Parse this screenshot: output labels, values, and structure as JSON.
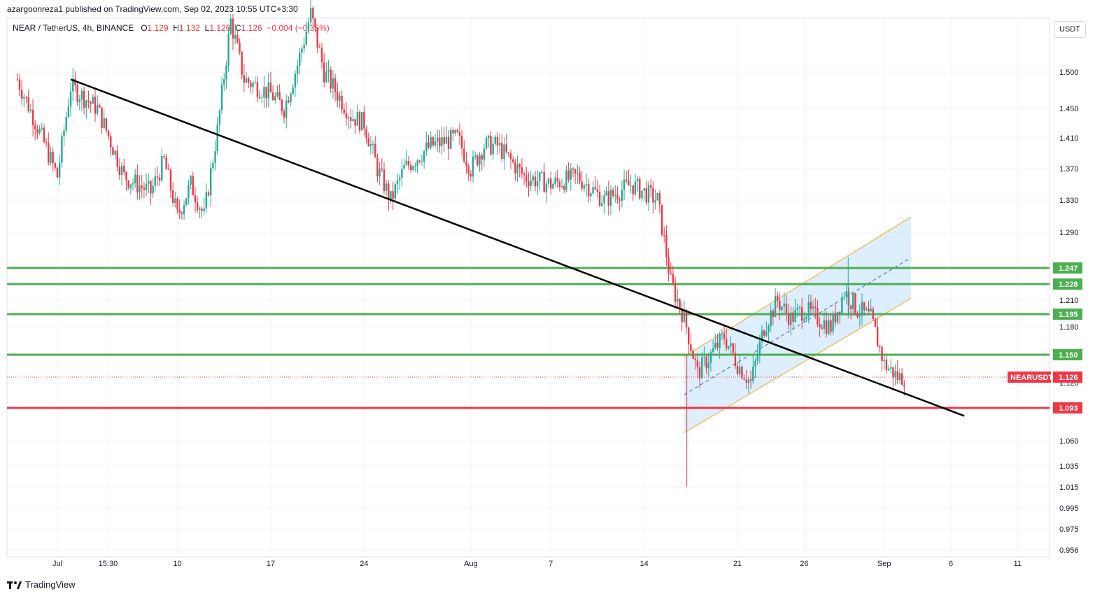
{
  "header": {
    "publisher_line": "azargoonreza1 published on TradingView.com, Sep 02, 2023 10:55 UTC+3:30"
  },
  "legend": {
    "symbol": "NEAR / TetherUS, 4h, BINANCE",
    "open_label": "O",
    "open": "1.129",
    "high_label": "H",
    "high": "1.132",
    "low_label": "L",
    "low": "1.126",
    "close_label": "C",
    "close": "1.126",
    "change": "−0.004 (−0.35%)"
  },
  "currency_button": "USDT",
  "footer": {
    "brand": "TradingView"
  },
  "colors": {
    "up": "#22ab94",
    "down": "#f23645",
    "support_green": "#4caf50",
    "support_red": "#f23645",
    "trendline": "#000000",
    "channel_border": "#f5a623",
    "channel_fill": "#bbdefb",
    "channel_mid": "#2962ff"
  },
  "chart_data": {
    "type": "candlestick",
    "symbol_tag": "NEARUSDT",
    "current_price": "1.126",
    "y_ticks": [
      "1.500",
      "1.450",
      "1.410",
      "1.370",
      "1.330",
      "1.290",
      "1.210",
      "1.180",
      "1.120",
      "1.060",
      "1.035",
      "1.015",
      "0.995",
      "0.975",
      "0.956"
    ],
    "x_ticks": [
      "Jul",
      "15:30",
      "10",
      "17",
      "24",
      "Aug",
      "7",
      "14",
      "21",
      "26",
      "Sep",
      "6",
      "11"
    ],
    "levels": [
      {
        "value": "1.247",
        "color": "green"
      },
      {
        "value": "1.228",
        "color": "green"
      },
      {
        "value": "1.195",
        "color": "green"
      },
      {
        "value": "1.150",
        "color": "green"
      },
      {
        "value": "1.093",
        "color": "red"
      }
    ],
    "trendline": {
      "from": [
        "Jul 2",
        1.49
      ],
      "to": [
        "Sep 7",
        1.085
      ]
    },
    "channel": {
      "lower_from": [
        "Aug 17",
        1.068
      ],
      "lower_to": [
        "Sep 3",
        1.212
      ],
      "upper_from": [
        "Aug 17",
        1.148
      ],
      "upper_to": [
        "Sep 3",
        1.309
      ]
    },
    "anchors": [
      {
        "x": "Jun 28",
        "close": 1.49
      },
      {
        "x": "Jul 1",
        "close": 1.36
      },
      {
        "x": "Jul 2",
        "close": 1.48
      },
      {
        "x": "Jul 4",
        "close": 1.45
      },
      {
        "x": "Jul 6",
        "close": 1.36
      },
      {
        "x": "Jul 8",
        "close": 1.34
      },
      {
        "x": "Jul 9",
        "close": 1.38
      },
      {
        "x": "Jul 10",
        "close": 1.31
      },
      {
        "x": "Jul 11",
        "close": 1.35
      },
      {
        "x": "Jul 12",
        "close": 1.31
      },
      {
        "x": "Jul 13",
        "close": 1.42
      },
      {
        "x": "Jul 14",
        "close": 1.57
      },
      {
        "x": "Jul 15",
        "close": 1.49
      },
      {
        "x": "Jul 17",
        "close": 1.47
      },
      {
        "x": "Jul 18",
        "close": 1.45
      },
      {
        "x": "Jul 19",
        "close": 1.51
      },
      {
        "x": "Jul 20",
        "close": 1.58
      },
      {
        "x": "Jul 21",
        "close": 1.5
      },
      {
        "x": "Jul 23",
        "close": 1.44
      },
      {
        "x": "Jul 24",
        "close": 1.43
      },
      {
        "x": "Jul 25",
        "close": 1.37
      },
      {
        "x": "Jul 26",
        "close": 1.33
      },
      {
        "x": "Jul 27",
        "close": 1.37
      },
      {
        "x": "Jul 29",
        "close": 1.4
      },
      {
        "x": "Jul 31",
        "close": 1.41
      },
      {
        "x": "Aug 1",
        "close": 1.37
      },
      {
        "x": "Aug 2",
        "close": 1.4
      },
      {
        "x": "Aug 3",
        "close": 1.4
      },
      {
        "x": "Aug 5",
        "close": 1.36
      },
      {
        "x": "Aug 7",
        "close": 1.35
      },
      {
        "x": "Aug 9",
        "close": 1.36
      },
      {
        "x": "Aug 11",
        "close": 1.33
      },
      {
        "x": "Aug 13",
        "close": 1.35
      },
      {
        "x": "Aug 15",
        "close": 1.33
      },
      {
        "x": "Aug 16",
        "close": 1.23
      },
      {
        "x": "Aug 17",
        "close": 1.19
      },
      {
        "x": "Aug 18",
        "close": 1.13
      },
      {
        "x": "Aug 19",
        "close": 1.15
      },
      {
        "x": "Aug 20",
        "close": 1.17
      },
      {
        "x": "Aug 21",
        "close": 1.14
      },
      {
        "x": "Aug 22",
        "close": 1.12
      },
      {
        "x": "Aug 23",
        "close": 1.18
      },
      {
        "x": "Aug 24",
        "close": 1.21
      },
      {
        "x": "Aug 25",
        "close": 1.19
      },
      {
        "x": "Aug 26",
        "close": 1.2
      },
      {
        "x": "Aug 27",
        "close": 1.19
      },
      {
        "x": "Aug 28",
        "close": 1.18
      },
      {
        "x": "Aug 29",
        "close": 1.22
      },
      {
        "x": "Aug 30",
        "close": 1.2
      },
      {
        "x": "Aug 31",
        "close": 1.19
      },
      {
        "x": "Sep 1",
        "close": 1.14
      },
      {
        "x": "Sep 2",
        "close": 1.126
      }
    ]
  }
}
